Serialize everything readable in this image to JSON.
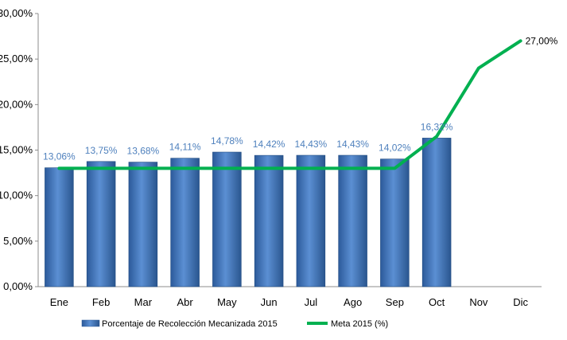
{
  "chart_data": {
    "type": "bar",
    "categories": [
      "Ene",
      "Feb",
      "Mar",
      "Abr",
      "May",
      "Jun",
      "Jul",
      "Ago",
      "Sep",
      "Oct",
      "Nov",
      "Dic"
    ],
    "series": [
      {
        "name": "Porcentaje de Recolección Mecanizada 2015",
        "type": "bar",
        "color": "#4f81bd",
        "values": [
          13.06,
          13.75,
          13.68,
          14.11,
          14.78,
          14.42,
          14.43,
          14.43,
          14.02,
          16.32,
          null,
          null
        ],
        "labels": [
          "13,06%",
          "13,75%",
          "13,68%",
          "14,11%",
          "14,78%",
          "14,42%",
          "14,43%",
          "14,43%",
          "14,02%",
          "16,32%",
          "",
          ""
        ]
      },
      {
        "name": "Meta 2015 (%)",
        "type": "line",
        "color": "#00b050",
        "values": [
          13.0,
          13.0,
          13.0,
          13.0,
          13.0,
          13.0,
          13.0,
          13.0,
          13.0,
          16.5,
          24.0,
          27.0
        ],
        "labels": [
          "",
          "",
          "",
          "",
          "",
          "",
          "",
          "",
          "",
          "",
          "",
          "27,00%"
        ]
      }
    ],
    "ylim": [
      0,
      30
    ],
    "yticks": [
      "0,00%",
      "5,00%",
      "10,00%",
      "15,00%",
      "20,00%",
      "25,00%",
      "30,00%"
    ],
    "grid": false,
    "legend_position": "bottom"
  }
}
